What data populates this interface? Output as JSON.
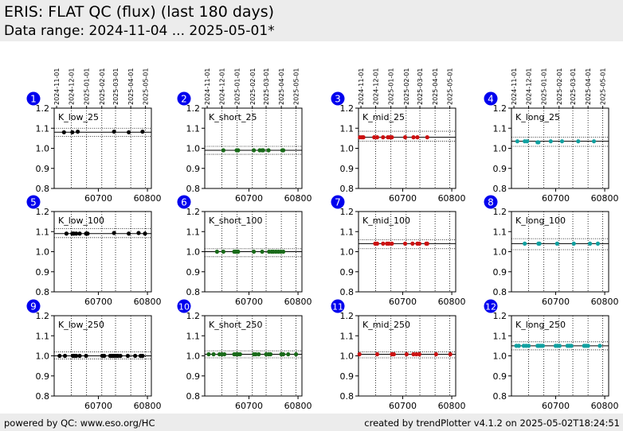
{
  "header": {
    "title": "ERIS: FLAT QC (flux) (last 180 days)",
    "subtitle": "Data range: 2024-11-04 ... 2025-05-01*"
  },
  "footer": {
    "left": "powered by QC: www.eso.org/HC",
    "right": "created by trendPlotter v4.1.2 on 2025-05-02T18:24:51"
  },
  "colors": {
    "black": "#000000",
    "green": "#1a6b1a",
    "red": "#cc1111",
    "teal": "#11a0a0",
    "badge": "#0000ee"
  },
  "chart_data": {
    "type": "scatter",
    "x_range": [
      60610,
      60808
    ],
    "ylim": [
      0.8,
      1.2
    ],
    "yticks": [
      "0.8",
      "0.9",
      "1.0",
      "1.1",
      "1.2"
    ],
    "xticks": [
      {
        "v": 60700,
        "label": "60700"
      },
      {
        "v": 60800,
        "label": "60800"
      }
    ],
    "date_ticks": [
      {
        "v": 60645,
        "label": "2024-12-01"
      },
      {
        "v": 60676,
        "label": "2025-01-01"
      },
      {
        "v": 60707,
        "label": "2025-02-01"
      },
      {
        "v": 60735,
        "label": "2025-03-01"
      },
      {
        "v": 60766,
        "label": "2025-04-01"
      },
      {
        "v": 60796,
        "label": "2025-05-01"
      }
    ],
    "date_tick_first": {
      "v": 60615,
      "label": "2024-11-01"
    },
    "panels": [
      {
        "num": "1",
        "label": "K_low_25",
        "color": "black",
        "ref": 1.08,
        "band": [
          1.06,
          1.1
        ],
        "x": [
          60630,
          60647,
          60658,
          60732,
          60762,
          60790
        ],
        "y": [
          1.08,
          1.08,
          1.083,
          1.083,
          1.08,
          1.083
        ]
      },
      {
        "num": "2",
        "label": "K_short_25",
        "color": "green",
        "ref": 0.99,
        "band": [
          0.97,
          1.01
        ],
        "x": [
          60648,
          60675,
          60678,
          60710,
          60722,
          60727,
          60729,
          60740,
          60768,
          60770
        ],
        "y": [
          0.99,
          0.99,
          0.99,
          0.99,
          0.99,
          0.99,
          0.99,
          0.99,
          0.99,
          0.99
        ]
      },
      {
        "num": "3",
        "label": "K_mid_25",
        "color": "red",
        "ref": 1.055,
        "band": [
          1.035,
          1.085
        ],
        "x": [
          60613,
          60617,
          60620,
          60642,
          60648,
          60660,
          60670,
          60674,
          60678,
          60705,
          60722,
          60730,
          60750
        ],
        "y": [
          1.055,
          1.055,
          1.055,
          1.055,
          1.055,
          1.055,
          1.055,
          1.055,
          1.055,
          1.055,
          1.055,
          1.055,
          1.055
        ]
      },
      {
        "num": "4",
        "label": "K_long_25",
        "color": "teal",
        "ref": 1.035,
        "band": [
          1.01,
          1.055
        ],
        "x": [
          60622,
          60637,
          60642,
          60663,
          60665,
          60690,
          60713,
          60746,
          60778
        ],
        "y": [
          1.035,
          1.035,
          1.035,
          1.03,
          1.03,
          1.035,
          1.035,
          1.035,
          1.035
        ]
      },
      {
        "num": "5",
        "label": "K_low_100",
        "color": "black",
        "ref": 1.09,
        "band": [
          1.07,
          1.115
        ],
        "x": [
          60635,
          60647,
          60650,
          60655,
          60662,
          60675,
          60678,
          60732,
          60762,
          60782,
          60795
        ],
        "y": [
          1.09,
          1.09,
          1.09,
          1.09,
          1.09,
          1.09,
          1.09,
          1.093,
          1.09,
          1.093,
          1.09
        ]
      },
      {
        "num": "6",
        "label": "K_short_100",
        "color": "green",
        "ref": 1.0,
        "band": [
          0.975,
          1.015
        ],
        "x": [
          60635,
          60648,
          60670,
          60673,
          60676,
          60678,
          60710,
          60727,
          60741,
          60746,
          60750,
          60755,
          60760,
          60765,
          60770
        ],
        "y": [
          1.0,
          1.0,
          1.0,
          1.0,
          1.0,
          1.0,
          1.0,
          1.0,
          1.0,
          1.0,
          1.0,
          1.0,
          1.0,
          1.0,
          1.0
        ]
      },
      {
        "num": "7",
        "label": "K_mid_100",
        "color": "red",
        "ref": 1.04,
        "band": [
          1.015,
          1.06
        ],
        "x": [
          60644,
          60648,
          60660,
          60668,
          60672,
          60678,
          60705,
          60720,
          60730,
          60734,
          60748,
          60750
        ],
        "y": [
          1.04,
          1.04,
          1.04,
          1.04,
          1.04,
          1.04,
          1.04,
          1.04,
          1.04,
          1.04,
          1.04,
          1.04
        ]
      },
      {
        "num": "8",
        "label": "K_long_100",
        "color": "teal",
        "ref": 1.04,
        "band": [
          1.01,
          1.065
        ],
        "x": [
          60637,
          60665,
          60667,
          60703,
          60737,
          60770,
          60786
        ],
        "y": [
          1.04,
          1.04,
          1.04,
          1.04,
          1.04,
          1.04,
          1.04
        ]
      },
      {
        "num": "9",
        "label": "K_low_250",
        "color": "black",
        "ref": 1.0,
        "band": [
          0.985,
          1.02
        ],
        "x": [
          60621,
          60632,
          60648,
          60651,
          60655,
          60662,
          60675,
          60708,
          60712,
          60724,
          60728,
          60732,
          60736,
          60740,
          60745,
          60760,
          60775,
          60786,
          60790
        ],
        "y": [
          1.0,
          1.0,
          1.0,
          1.0,
          1.0,
          1.0,
          1.0,
          1.0,
          1.0,
          1.0,
          1.0,
          1.0,
          1.0,
          1.0,
          1.0,
          1.0,
          1.0,
          1.0,
          1.0
        ]
      },
      {
        "num": "10",
        "label": "K_short_250",
        "color": "green",
        "ref": 1.008,
        "band": [
          0.99,
          1.025
        ],
        "x": [
          60618,
          60628,
          60640,
          60645,
          60650,
          60670,
          60674,
          60678,
          60682,
          60710,
          60714,
          60720,
          60735,
          60740,
          60744,
          60766,
          60770,
          60780,
          60796
        ],
        "y": [
          1.008,
          1.008,
          1.008,
          1.008,
          1.008,
          1.008,
          1.008,
          1.008,
          1.008,
          1.008,
          1.008,
          1.008,
          1.008,
          1.008,
          1.008,
          1.008,
          1.008,
          1.008,
          1.008
        ]
      },
      {
        "num": "11",
        "label": "K_mid_250",
        "color": "red",
        "ref": 1.008,
        "band": [
          0.99,
          1.02
        ],
        "x": [
          60612,
          60648,
          60678,
          60682,
          60708,
          60722,
          60728,
          60734,
          60768,
          60797
        ],
        "y": [
          1.008,
          1.008,
          1.008,
          1.008,
          1.008,
          1.008,
          1.008,
          1.008,
          1.008,
          1.008
        ]
      },
      {
        "num": "12",
        "label": "K_long_250",
        "color": "teal",
        "ref": 1.05,
        "band": [
          1.03,
          1.07
        ],
        "x": [
          60620,
          60625,
          60635,
          60640,
          60645,
          60663,
          60666,
          60670,
          60674,
          60700,
          60704,
          60708,
          60724,
          60728,
          60732,
          60758,
          60762,
          60766,
          60790
        ],
        "y": [
          1.05,
          1.05,
          1.05,
          1.05,
          1.05,
          1.05,
          1.05,
          1.05,
          1.05,
          1.05,
          1.05,
          1.05,
          1.05,
          1.05,
          1.05,
          1.05,
          1.05,
          1.05,
          1.05
        ]
      }
    ]
  }
}
